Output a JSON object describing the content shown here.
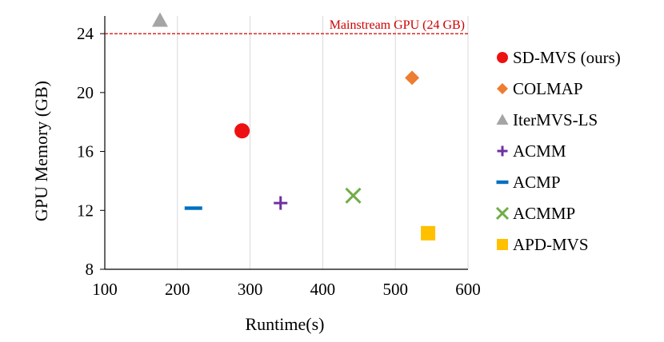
{
  "chart_data": {
    "type": "scatter",
    "title": "",
    "xlabel": "Runtime(s)",
    "ylabel": "GPU Memory (GB)",
    "xlim": [
      100,
      600
    ],
    "ylim": [
      8,
      25
    ],
    "xticks": [
      100,
      200,
      300,
      400,
      500,
      600
    ],
    "yticks": [
      8,
      12,
      16,
      20,
      24
    ],
    "grid": "vertical",
    "legend_position": "right",
    "reference_line": {
      "y": 24,
      "label": "Mainstream GPU (24 GB)",
      "color": "#cc0000",
      "style": "dashed"
    },
    "series": [
      {
        "name": "SD-MVS (ours)",
        "marker": "circle",
        "color": "#ee1111",
        "x": 289,
        "y": 17.4
      },
      {
        "name": "COLMAP",
        "marker": "diamond",
        "color": "#ed7d31",
        "x": 523,
        "y": 21.0
      },
      {
        "name": "IterMVS-LS",
        "marker": "triangle",
        "color": "#a5a5a5",
        "x": 176,
        "y": 24.9
      },
      {
        "name": "ACMM",
        "marker": "plus",
        "color": "#7030a0",
        "x": 342,
        "y": 12.5
      },
      {
        "name": "ACMP",
        "marker": "dash",
        "color": "#0070c0",
        "x": 222,
        "y": 12.15
      },
      {
        "name": "ACMMP",
        "marker": "x",
        "color": "#70ad47",
        "x": 442,
        "y": 13.0
      },
      {
        "name": "APD-MVS",
        "marker": "square",
        "color": "#ffc000",
        "x": 545,
        "y": 10.45
      }
    ]
  }
}
